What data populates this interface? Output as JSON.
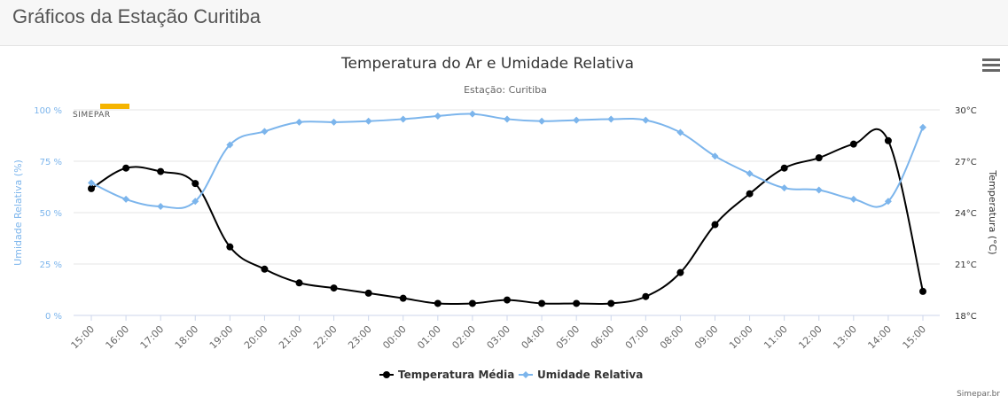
{
  "page": {
    "title": "Gráficos da Estação Curitiba"
  },
  "credit": "Simepar.br",
  "logo_text": "SIMEPAR",
  "colors": {
    "temperature": "#000000",
    "humidity": "#7cb5ec",
    "grid": "#e6e6e6"
  },
  "icons": {
    "menu": "hamburger-menu-icon"
  },
  "chart_data": {
    "type": "line",
    "title": "Temperatura do Ar e Umidade Relativa",
    "subtitle": "Estação: Curitiba",
    "categories": [
      "15:00",
      "16:00",
      "17:00",
      "18:00",
      "19:00",
      "20:00",
      "21:00",
      "22:00",
      "23:00",
      "00:00",
      "01:00",
      "02:00",
      "03:00",
      "04:00",
      "05:00",
      "06:00",
      "07:00",
      "08:00",
      "09:00",
      "10:00",
      "11:00",
      "12:00",
      "13:00",
      "14:00",
      "15:00"
    ],
    "y_axis_left": {
      "label": "Umidade Relativa (%)",
      "ticks": [
        "0 %",
        "25 %",
        "50 %",
        "75 %",
        "100 %"
      ],
      "range": [
        0,
        100
      ]
    },
    "y_axis_right": {
      "label": "Temperatura (°C)",
      "ticks": [
        "18°C",
        "21°C",
        "24°C",
        "27°C",
        "30°C"
      ],
      "range": [
        18,
        30
      ]
    },
    "grid": true,
    "legend_position": "bottom-center",
    "series": [
      {
        "name": "Temperatura Média",
        "axis": "right",
        "marker": "circle",
        "values": [
          25.4,
          26.6,
          26.4,
          25.7,
          22.0,
          20.7,
          19.9,
          19.6,
          19.3,
          19.0,
          18.7,
          18.7,
          18.9,
          18.7,
          18.7,
          18.7,
          19.1,
          20.5,
          23.3,
          25.1,
          26.6,
          27.2,
          28.0,
          28.2,
          19.4
        ]
      },
      {
        "name": "Umidade Relativa",
        "axis": "left",
        "marker": "diamond",
        "values": [
          64.5,
          56.5,
          53,
          55.5,
          83,
          89.5,
          94,
          94,
          94.5,
          95.5,
          97,
          98,
          95.5,
          94.5,
          95,
          95.5,
          95,
          89,
          77.5,
          69,
          62,
          61,
          56.5,
          55.5,
          91.5
        ]
      }
    ]
  }
}
